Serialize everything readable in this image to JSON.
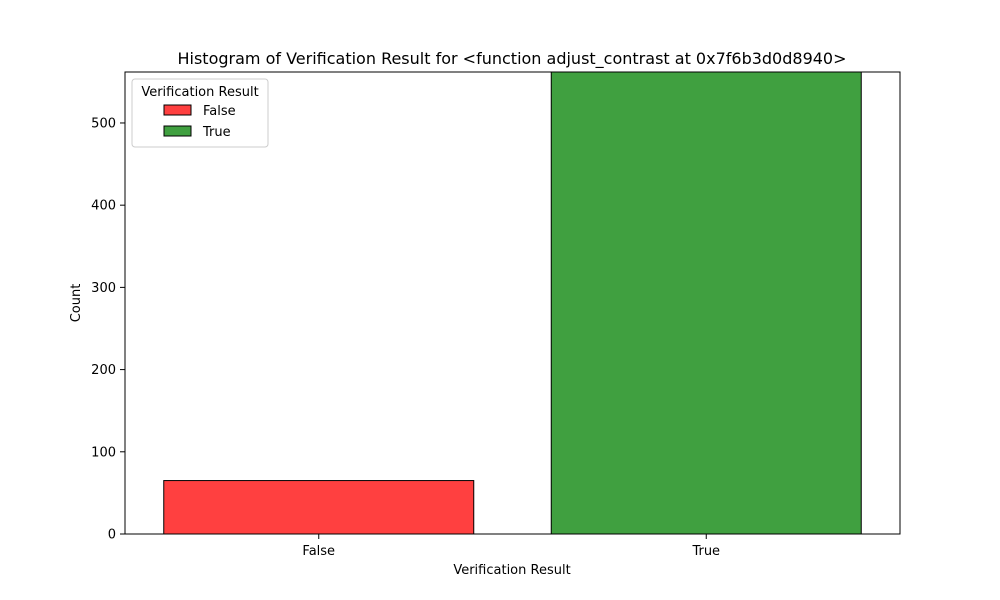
{
  "chart_data": {
    "type": "bar",
    "title": "Histogram of Verification Result for <function adjust_contrast at 0x7f6b3d0d8940>",
    "xlabel": "Verification Result",
    "ylabel": "Count",
    "categories": [
      "False",
      "True"
    ],
    "values": [
      65,
      562
    ],
    "colors": [
      "#ff4040",
      "#40a040"
    ],
    "edge_color": "#000000",
    "ylim": [
      0,
      562
    ],
    "yticks": [
      0,
      100,
      200,
      300,
      400,
      500
    ],
    "grid": false,
    "legend": {
      "title": "Verification Result",
      "placement": "top-left",
      "entries": [
        {
          "label": "False",
          "color": "#ff4040"
        },
        {
          "label": "True",
          "color": "#40a040"
        }
      ]
    }
  }
}
